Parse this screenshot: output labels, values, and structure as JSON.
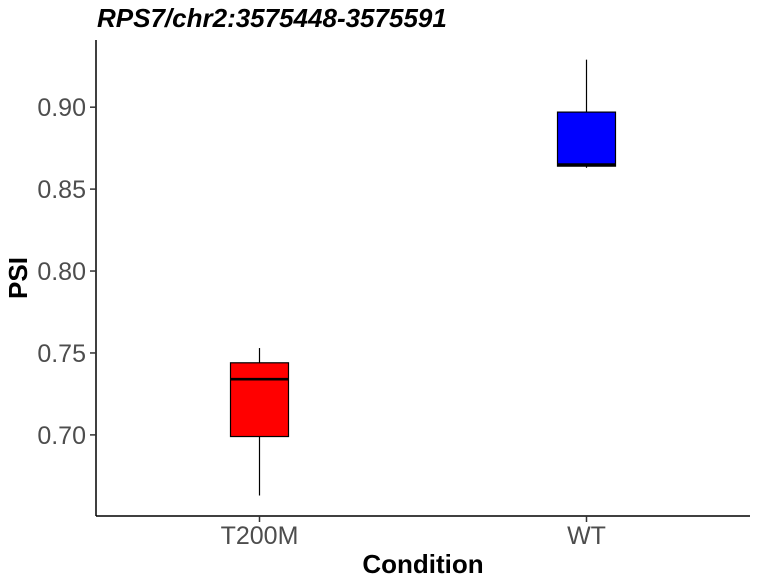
{
  "chart_data": {
    "type": "box",
    "title": "RPS7/chr2:3575448-3575591",
    "xlabel": "Condition",
    "ylabel": "PSI",
    "categories": [
      "T200M",
      "WT"
    ],
    "boxes": [
      {
        "category": "T200M",
        "min": 0.663,
        "q1": 0.699,
        "median": 0.734,
        "q3": 0.744,
        "max": 0.753,
        "color": "#ff0000"
      },
      {
        "category": "WT",
        "min": 0.863,
        "q1": 0.864,
        "median": 0.865,
        "q3": 0.897,
        "max": 0.929,
        "color": "#0000ff"
      }
    ],
    "ylim": [
      0.6505,
      0.941
    ],
    "yticks": [
      0.7,
      0.75,
      0.8,
      0.85,
      0.9
    ],
    "ytick_labels": [
      "0.70",
      "0.75",
      "0.80",
      "0.85",
      "0.90"
    ],
    "grid": false,
    "legend": "none"
  }
}
